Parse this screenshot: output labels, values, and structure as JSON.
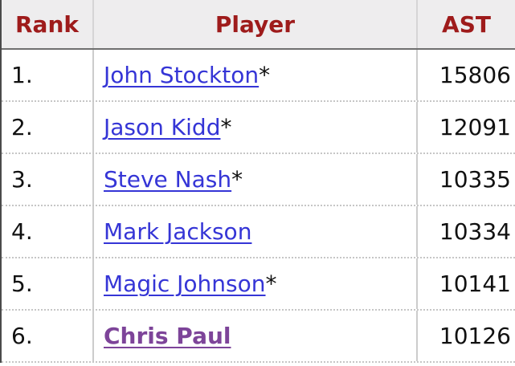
{
  "table": {
    "columns": [
      {
        "label": "Rank"
      },
      {
        "label": "Player"
      },
      {
        "label": "AST"
      }
    ],
    "rows": [
      {
        "rank": "1.",
        "player": "John Stockton",
        "asterisk": "*",
        "value": "15806"
      },
      {
        "rank": "2.",
        "player": "Jason Kidd",
        "asterisk": "*",
        "value": "12091"
      },
      {
        "rank": "3.",
        "player": "Steve Nash",
        "asterisk": "*",
        "value": "10335"
      },
      {
        "rank": "4.",
        "player": "Mark Jackson",
        "asterisk": "",
        "value": "10334"
      },
      {
        "rank": "5.",
        "player": "Magic Johnson",
        "asterisk": "*",
        "value": "10141"
      },
      {
        "rank": "6.",
        "player": "Chris Paul",
        "asterisk": "",
        "value": "10126"
      }
    ],
    "colors": {
      "header_bg": "#eeedee",
      "header_text": "#9e1b1b",
      "link": "#3535d6",
      "visited_link": "#7d4499",
      "body_text": "#111111"
    }
  }
}
